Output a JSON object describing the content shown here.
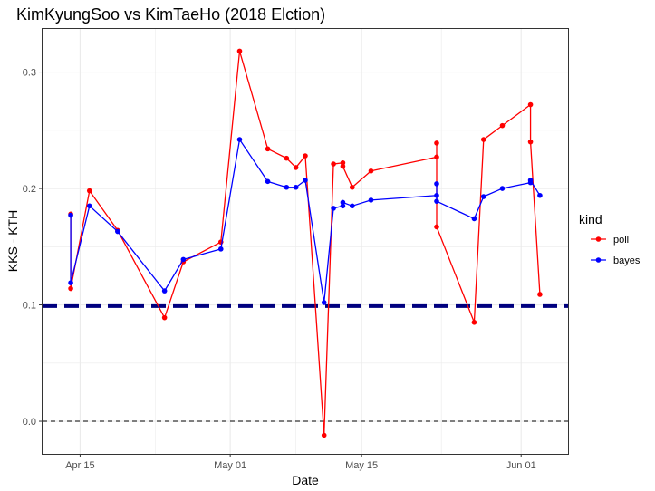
{
  "chart_data": {
    "type": "line",
    "title": "KimKyungSoo vs KimTaeHo (2018 Elction)",
    "xlabel": "Date",
    "ylabel": "KKS - KTH",
    "x_ticks": [
      {
        "date": "2018-04-15",
        "label": "Apr 15"
      },
      {
        "date": "2018-05-01",
        "label": "May 01"
      },
      {
        "date": "2018-05-15",
        "label": "May 15"
      },
      {
        "date": "2018-06-01",
        "label": "Jun 01"
      }
    ],
    "y_ticks": [
      {
        "value": 0.0,
        "label": "0.0"
      },
      {
        "value": 0.1,
        "label": "0.1"
      },
      {
        "value": 0.2,
        "label": "0.2"
      },
      {
        "value": 0.3,
        "label": "0.3"
      }
    ],
    "xlim": [
      "2018-04-11",
      "2018-06-06"
    ],
    "ylim": [
      -0.028,
      0.337
    ],
    "grid": true,
    "legend": {
      "title": "kind",
      "position": "right"
    },
    "reference_lines": [
      {
        "y": 0.0,
        "style": "dashed",
        "color": "#000000"
      },
      {
        "y": 0.099,
        "style": "thick-dashed",
        "color": "#00007f"
      }
    ],
    "series": [
      {
        "name": "poll",
        "color": "#ff0000",
        "points": [
          [
            "2018-04-14",
            0.178
          ],
          [
            "2018-04-14",
            0.114
          ],
          [
            "2018-04-16",
            0.198
          ],
          [
            "2018-04-19",
            0.164
          ],
          [
            "2018-04-24",
            0.089
          ],
          [
            "2018-04-26",
            0.137
          ],
          [
            "2018-04-30",
            0.154
          ],
          [
            "2018-05-02",
            0.318
          ],
          [
            "2018-05-05",
            0.234
          ],
          [
            "2018-05-07",
            0.226
          ],
          [
            "2018-05-08",
            0.218
          ],
          [
            "2018-05-09",
            0.228
          ],
          [
            "2018-05-11",
            -0.012
          ],
          [
            "2018-05-12",
            0.221
          ],
          [
            "2018-05-13",
            0.222
          ],
          [
            "2018-05-13",
            0.219
          ],
          [
            "2018-05-14",
            0.201
          ],
          [
            "2018-05-16",
            0.215
          ],
          [
            "2018-05-23",
            0.227
          ],
          [
            "2018-05-23",
            0.239
          ],
          [
            "2018-05-23",
            0.167
          ],
          [
            "2018-05-27",
            0.085
          ],
          [
            "2018-05-28",
            0.242
          ],
          [
            "2018-05-30",
            0.254
          ],
          [
            "2018-06-02",
            0.272
          ],
          [
            "2018-06-02",
            0.24
          ],
          [
            "2018-06-03",
            0.109
          ]
        ]
      },
      {
        "name": "bayes",
        "color": "#0000ff",
        "points": [
          [
            "2018-04-14",
            0.177
          ],
          [
            "2018-04-14",
            0.119
          ],
          [
            "2018-04-16",
            0.185
          ],
          [
            "2018-04-19",
            0.163
          ],
          [
            "2018-04-24",
            0.112
          ],
          [
            "2018-04-26",
            0.139
          ],
          [
            "2018-04-30",
            0.148
          ],
          [
            "2018-05-02",
            0.242
          ],
          [
            "2018-05-05",
            0.206
          ],
          [
            "2018-05-07",
            0.201
          ],
          [
            "2018-05-08",
            0.201
          ],
          [
            "2018-05-09",
            0.207
          ],
          [
            "2018-05-11",
            0.102
          ],
          [
            "2018-05-12",
            0.183
          ],
          [
            "2018-05-13",
            0.185
          ],
          [
            "2018-05-13",
            0.188
          ],
          [
            "2018-05-14",
            0.185
          ],
          [
            "2018-05-16",
            0.19
          ],
          [
            "2018-05-23",
            0.194
          ],
          [
            "2018-05-23",
            0.204
          ],
          [
            "2018-05-23",
            0.189
          ],
          [
            "2018-05-27",
            0.174
          ],
          [
            "2018-05-28",
            0.193
          ],
          [
            "2018-05-30",
            0.2
          ],
          [
            "2018-06-02",
            0.205
          ],
          [
            "2018-06-02",
            0.207
          ],
          [
            "2018-06-03",
            0.194
          ]
        ]
      }
    ]
  }
}
